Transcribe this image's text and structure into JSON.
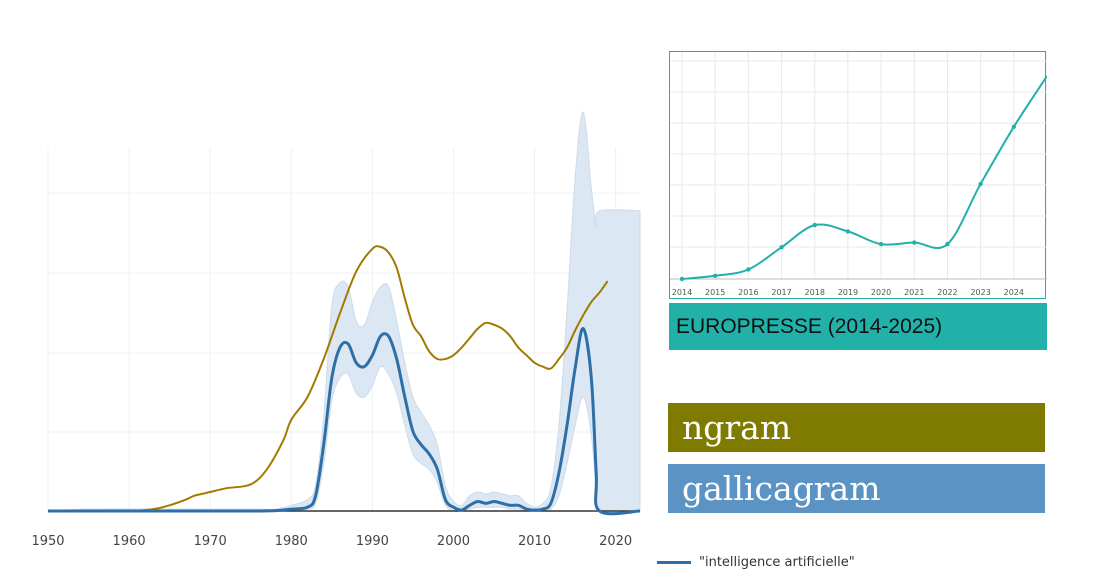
{
  "colors": {
    "gallicagram": "#2f6fa8",
    "gallicagram_band": "#dbe7f2",
    "ngram": "#a37a00",
    "europresse": "#22b1a9",
    "ngram_label_bg": "#7f7a00",
    "gallicagram_label_bg": "#5a93c4",
    "europresse_caption_bg": "#22b1a9"
  },
  "labels": {
    "europresse_caption": "EUROPRESSE (2014-2025)",
    "ngram": "ngram",
    "gallicagram": "gallicagram",
    "legend": "\"intelligence artificielle\""
  },
  "chart_data": [
    {
      "type": "line",
      "x_ticks": [
        "1950",
        "1960",
        "1970",
        "1980",
        "1990",
        "2000",
        "2010",
        "2020"
      ],
      "xlim": [
        1950,
        2023
      ],
      "grid": true,
      "series": [
        {
          "name": "\"intelligence artificielle\"",
          "x": [
            1950,
            1955,
            1965,
            1975,
            1978,
            1980,
            1982,
            1983,
            1984,
            1985,
            1986,
            1987,
            1988,
            1989,
            1990,
            1991,
            1992,
            1993,
            1994,
            1995,
            1996,
            1997,
            1998,
            1999,
            2000,
            2001,
            2002,
            2003,
            2004,
            2005,
            2006,
            2007,
            2008,
            2009,
            2010,
            2011,
            2012,
            2013,
            2014,
            2015,
            2016,
            2017,
            2017.6,
            2018,
            2023
          ],
          "y": [
            0,
            0,
            0,
            0,
            0.2,
            1,
            2,
            8,
            35,
            70,
            86,
            88,
            78,
            76,
            82,
            92,
            92,
            80,
            60,
            42,
            35,
            30,
            22,
            6,
            2,
            0.5,
            3,
            5,
            4,
            5,
            4,
            3,
            3,
            1,
            0.5,
            1,
            4,
            20,
            45,
            75,
            96,
            70,
            20,
            0,
            0
          ],
          "band_lower": [
            0,
            0,
            0,
            0,
            0,
            0,
            1,
            4,
            25,
            58,
            70,
            72,
            62,
            60,
            66,
            76,
            72,
            62,
            45,
            30,
            25,
            22,
            15,
            3,
            0,
            0,
            1,
            2,
            2,
            2,
            2,
            1,
            1,
            0,
            0,
            0,
            1,
            8,
            25,
            45,
            60,
            40,
            10,
            0,
            0
          ],
          "band_upper": [
            0,
            1,
            1,
            1,
            1,
            3,
            6,
            14,
            50,
            108,
            120,
            118,
            100,
            98,
            110,
            118,
            118,
            100,
            78,
            60,
            52,
            45,
            35,
            13,
            5,
            3,
            8,
            10,
            9,
            10,
            9,
            8,
            8,
            4,
            2,
            4,
            12,
            45,
            105,
            175,
            210,
            170,
            150,
            158,
            158
          ]
        },
        {
          "name": "ngram",
          "x": [
            1955,
            1960,
            1963,
            1965,
            1967,
            1968,
            1969,
            1970,
            1972,
            1975,
            1977,
            1979,
            1980,
            1982,
            1984,
            1986,
            1988,
            1990,
            1991,
            1992,
            1993,
            1994,
            1995,
            1996,
            1997,
            1998,
            1999,
            2000,
            2001,
            2002,
            2003,
            2004,
            2005,
            2006,
            2007,
            2008,
            2009,
            2010,
            2011,
            2012,
            2013,
            2014,
            2015,
            2016,
            2017,
            2018,
            2019
          ],
          "y": [
            0,
            0,
            1,
            3,
            6,
            8,
            9,
            10,
            12,
            14,
            22,
            37,
            48,
            60,
            80,
            104,
            126,
            138,
            139,
            136,
            128,
            112,
            98,
            92,
            84,
            80,
            80,
            82,
            86,
            91,
            96,
            99,
            98,
            96,
            92,
            86,
            82,
            78,
            76,
            75,
            80,
            86,
            95,
            103,
            110,
            115,
            121
          ]
        }
      ]
    },
    {
      "type": "line",
      "categories": [
        "2014",
        "2015",
        "2016",
        "2017",
        "2018",
        "2019",
        "2020",
        "2021",
        "2022",
        "2023",
        "2024"
      ],
      "series": [
        {
          "x": [
            2014,
            2015,
            2016,
            2017,
            2018,
            2019,
            2020,
            2021,
            2022,
            2023,
            2024,
            2025
          ],
          "y": [
            0,
            1,
            3,
            10,
            17,
            15,
            11,
            11.5,
            11,
            30,
            48,
            64
          ]
        }
      ]
    }
  ]
}
